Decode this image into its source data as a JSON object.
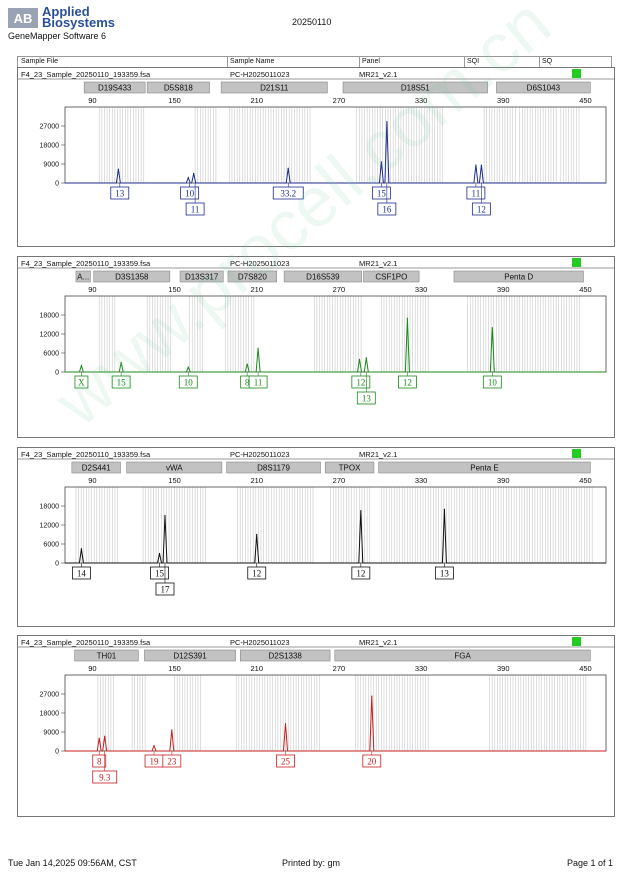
{
  "header": {
    "logo_mark": "AB",
    "brand_line1": "Applied",
    "brand_line2": "Biosystems",
    "software": "GeneMapper Software 6",
    "date": "20250110"
  },
  "columns": [
    "Sample File",
    "Sample Name",
    "Panel",
    "SQI",
    "SQ"
  ],
  "colors": {
    "blue": "#1c2b8f",
    "green": "#1a8a1a",
    "black": "#111111",
    "red": "#c81e1e",
    "bin": "#c8c8c8",
    "sq_ok": "#22cc22"
  },
  "panels": [
    {
      "sample_file": "F4_23_Sample_20250110_193359.fsa",
      "sample_name": "PC-H2025011023",
      "panel": "MR21_v2.1",
      "color": "blue",
      "markers": [
        {
          "label": "D19S433",
          "start": 84,
          "end": 130
        },
        {
          "label": "D5S818",
          "start": 130,
          "end": 177
        },
        {
          "label": "D21S11",
          "start": 184,
          "end": 263
        },
        {
          "label": "D18S51",
          "start": 273,
          "end": 380
        },
        {
          "label": "D6S1043",
          "start": 385,
          "end": 455
        }
      ],
      "chart_data": {
        "type": "line",
        "x_ticks": [
          90,
          150,
          210,
          270,
          330,
          390,
          450
        ],
        "xlim": [
          70,
          465
        ],
        "y_ticks": [
          "27000",
          "18000",
          "9000",
          "0"
        ],
        "ylim": [
          0,
          36000
        ],
        "bins": [
          [
            95,
            116
          ],
          [
            118,
            128
          ],
          [
            165,
            181
          ],
          [
            190,
            250
          ],
          [
            283,
            346
          ],
          [
            376,
            400
          ],
          [
            402,
            430
          ],
          [
            432,
            446
          ]
        ],
        "peaks": [
          {
            "x": 109,
            "h": 6500
          },
          {
            "x": 160,
            "h": 2500
          },
          {
            "x": 164,
            "h": 4500
          },
          {
            "x": 233,
            "h": 7000
          },
          {
            "x": 301,
            "h": 10000
          },
          {
            "x": 305,
            "h": 29000
          },
          {
            "x": 370,
            "h": 8500
          },
          {
            "x": 374,
            "h": 8500
          }
        ],
        "alleles": [
          {
            "x": 110,
            "label": "13",
            "row": 0
          },
          {
            "x": 161,
            "label": "10",
            "row": 0
          },
          {
            "x": 165,
            "label": "11",
            "row": 1
          },
          {
            "x": 233,
            "label": "33.2",
            "row": 0
          },
          {
            "x": 301,
            "label": "15",
            "row": 0
          },
          {
            "x": 305,
            "label": "16",
            "row": 1
          },
          {
            "x": 370,
            "label": "11",
            "row": 0
          },
          {
            "x": 374,
            "label": "12",
            "row": 1
          }
        ]
      }
    },
    {
      "sample_file": "F4_23_Sample_20250110_193359.fsa",
      "sample_name": "PC-H2025011023",
      "panel": "MR21_v2.1",
      "color": "green",
      "markers": [
        {
          "label": "A...",
          "start": 78,
          "end": 90
        },
        {
          "label": "D3S1358",
          "start": 91,
          "end": 148
        },
        {
          "label": "D13S317",
          "start": 154,
          "end": 187
        },
        {
          "label": "D7S820",
          "start": 189,
          "end": 226
        },
        {
          "label": "D16S539",
          "start": 230,
          "end": 288
        },
        {
          "label": "CSF1PO",
          "start": 288,
          "end": 330
        },
        {
          "label": "Penta D",
          "start": 354,
          "end": 450
        }
      ],
      "chart_data": {
        "type": "line",
        "x_ticks": [
          90,
          150,
          210,
          270,
          330,
          390,
          450
        ],
        "xlim": [
          70,
          465
        ],
        "y_ticks": [
          "18000",
          "12000",
          "6000",
          "0"
        ],
        "ylim": [
          0,
          24000
        ],
        "bins": [
          [
            95,
            108
          ],
          [
            130,
            148
          ],
          [
            161,
            172
          ],
          [
            187,
            208
          ],
          [
            252,
            288
          ],
          [
            301,
            337
          ],
          [
            364,
            447
          ]
        ],
        "peaks": [
          {
            "x": 82,
            "h": 2000
          },
          {
            "x": 111,
            "h": 3000
          },
          {
            "x": 160,
            "h": 1500
          },
          {
            "x": 203,
            "h": 2500
          },
          {
            "x": 211,
            "h": 7500
          },
          {
            "x": 285,
            "h": 4000
          },
          {
            "x": 290,
            "h": 4500
          },
          {
            "x": 320,
            "h": 17000
          },
          {
            "x": 382,
            "h": 14000
          }
        ],
        "alleles": [
          {
            "x": 82,
            "label": "X",
            "row": 0
          },
          {
            "x": 111,
            "label": "15",
            "row": 0
          },
          {
            "x": 160,
            "label": "10",
            "row": 0
          },
          {
            "x": 203,
            "label": "8",
            "row": 0
          },
          {
            "x": 211,
            "label": "11",
            "row": 0
          },
          {
            "x": 286,
            "label": "12",
            "row": 0
          },
          {
            "x": 290,
            "label": "13",
            "row": 1
          },
          {
            "x": 320,
            "label": "12",
            "row": 0
          },
          {
            "x": 382,
            "label": "10",
            "row": 0
          }
        ]
      }
    },
    {
      "sample_file": "F4_23_Sample_20250110_193359.fsa",
      "sample_name": "PC-H2025011023",
      "panel": "MR21_v2.1",
      "color": "black",
      "markers": [
        {
          "label": "D2S441",
          "start": 75,
          "end": 112
        },
        {
          "label": "vWA",
          "start": 115,
          "end": 186
        },
        {
          "label": "D8S1179",
          "start": 188,
          "end": 258
        },
        {
          "label": "TPOX",
          "start": 260,
          "end": 297
        },
        {
          "label": "Penta E",
          "start": 299,
          "end": 455
        }
      ],
      "chart_data": {
        "type": "line",
        "x_ticks": [
          90,
          150,
          210,
          270,
          330,
          390,
          450
        ],
        "xlim": [
          70,
          465
        ],
        "y_ticks": [
          "18000",
          "12000",
          "6000",
          "0"
        ],
        "ylim": [
          0,
          24000
        ],
        "bins": [
          [
            78,
            110
          ],
          [
            127,
            173
          ],
          [
            196,
            253
          ],
          [
            264,
            293
          ],
          [
            301,
            455
          ]
        ],
        "peaks": [
          {
            "x": 82,
            "h": 4500
          },
          {
            "x": 139,
            "h": 3000
          },
          {
            "x": 143,
            "h": 15000
          },
          {
            "x": 210,
            "h": 9000
          },
          {
            "x": 286,
            "h": 16500
          },
          {
            "x": 347,
            "h": 17000
          }
        ],
        "alleles": [
          {
            "x": 82,
            "label": "14",
            "row": 0
          },
          {
            "x": 139,
            "label": "15",
            "row": 0
          },
          {
            "x": 143,
            "label": "17",
            "row": 1
          },
          {
            "x": 210,
            "label": "12",
            "row": 0
          },
          {
            "x": 286,
            "label": "12",
            "row": 0
          },
          {
            "x": 347,
            "label": "13",
            "row": 0
          }
        ]
      }
    },
    {
      "sample_file": "F4_23_Sample_20250110_193359.fsa",
      "sample_name": "PC-H2025011023",
      "panel": "MR21_v2.1",
      "color": "red",
      "markers": [
        {
          "label": "TH01",
          "start": 77,
          "end": 125
        },
        {
          "label": "D12S391",
          "start": 128,
          "end": 196
        },
        {
          "label": "D2S1338",
          "start": 198,
          "end": 265
        },
        {
          "label": "FGA",
          "start": 267,
          "end": 455
        }
      ],
      "chart_data": {
        "type": "line",
        "x_ticks": [
          90,
          150,
          210,
          270,
          330,
          390,
          450
        ],
        "xlim": [
          70,
          465
        ],
        "y_ticks": [
          "27000",
          "18000",
          "9000",
          "0"
        ],
        "ylim": [
          0,
          36000
        ],
        "bins": [
          [
            94,
            106
          ],
          [
            119,
            129
          ],
          [
            150,
            170
          ],
          [
            195,
            256
          ],
          [
            282,
            337
          ],
          [
            380,
            452
          ]
        ],
        "peaks": [
          {
            "x": 95,
            "h": 6000
          },
          {
            "x": 99,
            "h": 7000
          },
          {
            "x": 135,
            "h": 2500
          },
          {
            "x": 148,
            "h": 10000
          },
          {
            "x": 231,
            "h": 13000
          },
          {
            "x": 294,
            "h": 26000
          }
        ],
        "alleles": [
          {
            "x": 95,
            "label": "8",
            "row": 0
          },
          {
            "x": 99,
            "label": "9.3",
            "row": 1
          },
          {
            "x": 135,
            "label": "19",
            "row": 0
          },
          {
            "x": 148,
            "label": "23",
            "row": 0
          },
          {
            "x": 231,
            "label": "25",
            "row": 0
          },
          {
            "x": 294,
            "label": "20",
            "row": 0
          }
        ]
      }
    }
  ],
  "footer": {
    "printed_at": "Tue Jan 14,2025 09:56AM, CST",
    "printed_by": "Printed by: gm",
    "page": "Page 1 of 1"
  },
  "watermark": "www.procell.com.cn"
}
